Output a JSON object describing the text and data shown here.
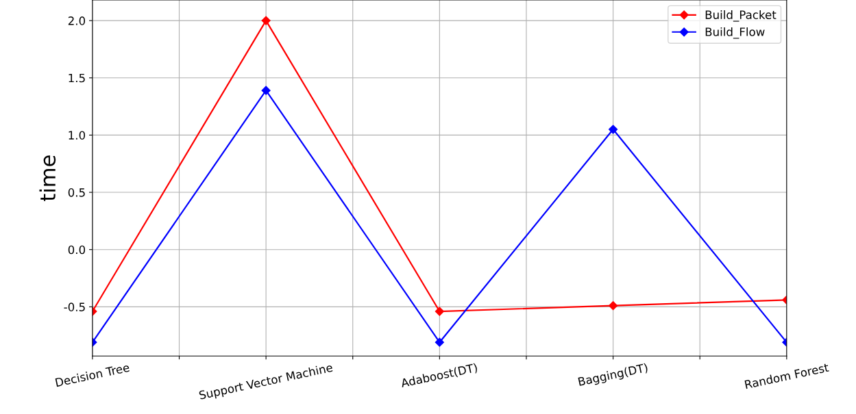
{
  "chart_data": {
    "type": "line",
    "ylabel": "time",
    "categories": [
      "Decision Tree",
      "Support Vector Machine",
      "Adaboost(DT)",
      "Bagging(DT)",
      "Random Forest"
    ],
    "ylim": [
      -0.93,
      2.18
    ],
    "yticks": [
      {
        "value": -0.5,
        "label": "-0.5"
      },
      {
        "value": 0,
        "label": "0.0"
      },
      {
        "value": 0.5,
        "label": "0.5"
      },
      {
        "value": 1,
        "label": "1.0"
      },
      {
        "value": 1.5,
        "label": "1.5"
      },
      {
        "value": 2,
        "label": "2.0"
      }
    ],
    "series": [
      {
        "name": "Build_Packet",
        "color": "#ff0000",
        "values": [
          -0.54,
          2.0,
          -0.54,
          -0.49,
          -0.44
        ]
      },
      {
        "name": "Build_Flow",
        "color": "#0000ff",
        "values": [
          -0.81,
          1.39,
          -0.81,
          1.05,
          -0.81
        ]
      }
    ],
    "marker": "diamond",
    "line_style": "solid",
    "grid": true,
    "legend": "top right"
  }
}
